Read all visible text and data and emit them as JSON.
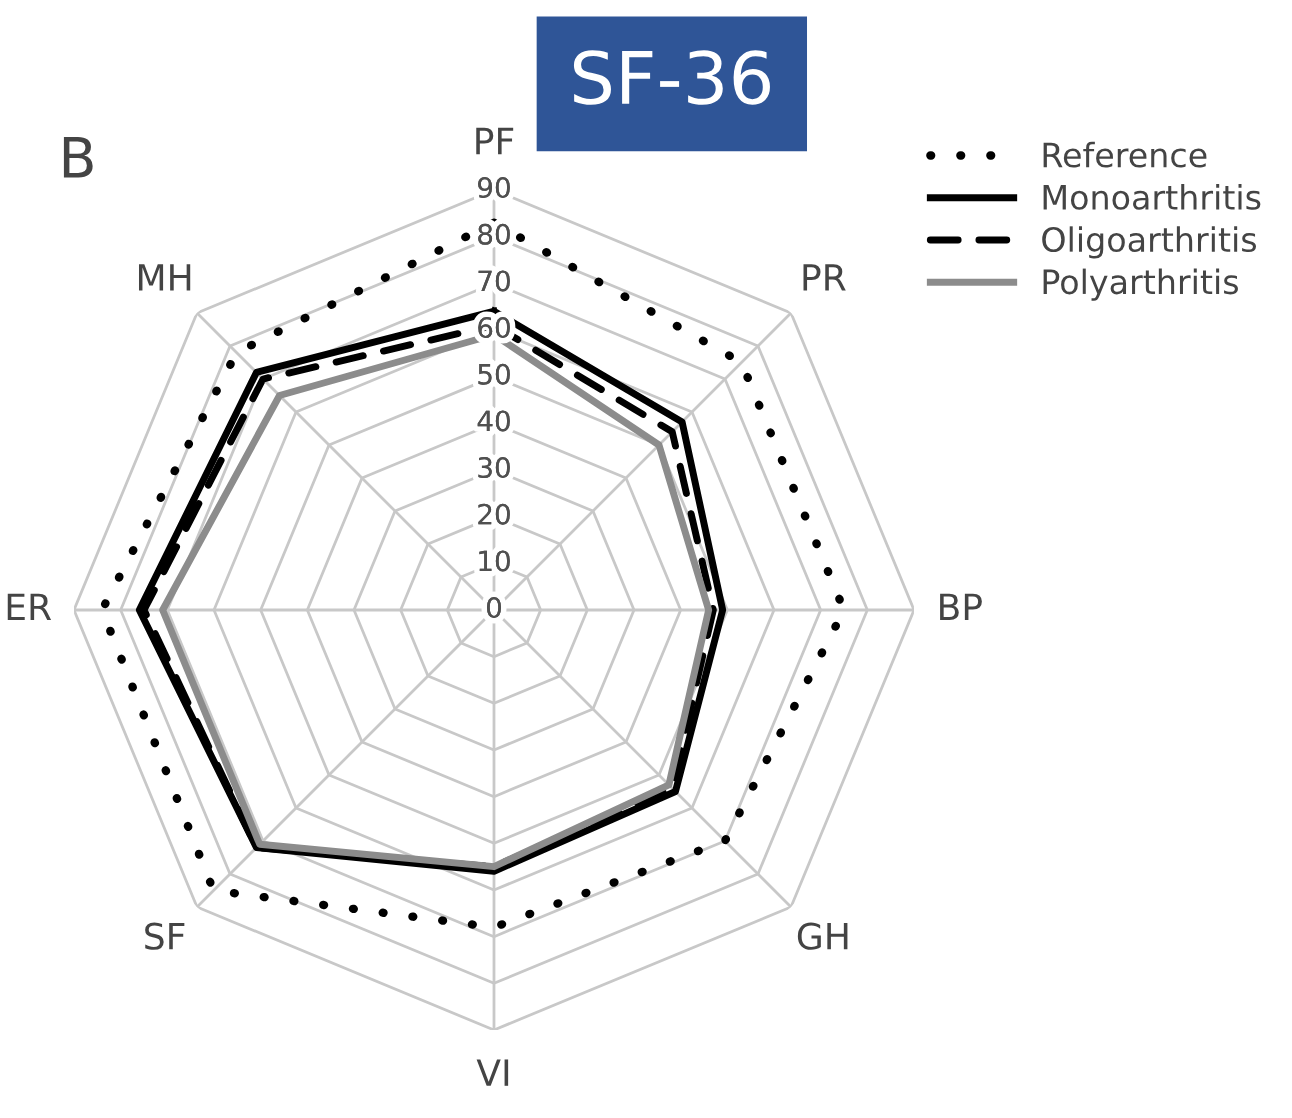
{
  "chart_data": {
    "type": "radar",
    "title": "SF-36",
    "annotations": [
      "B"
    ],
    "categories": [
      "PF",
      "PR",
      "BP",
      "GH",
      "VI",
      "SF",
      "ER",
      "MH"
    ],
    "ylim": [
      0,
      90
    ],
    "yticks": [
      0,
      10,
      20,
      30,
      40,
      50,
      60,
      70,
      80,
      90
    ],
    "grid": true,
    "legend": "top right",
    "marker": "none",
    "series": [
      {
        "name": "Reference",
        "color": "#000000",
        "line_style": "dotted",
        "values": [
          83,
          75,
          75,
          70,
          68,
          85,
          84,
          78
        ]
      },
      {
        "name": "Monoarthritis",
        "color": "#000000",
        "line_style": "solid",
        "values": [
          64,
          57,
          49,
          55,
          56,
          72,
          76,
          72
        ]
      },
      {
        "name": "Oligoarthritis",
        "color": "#000000",
        "line_style": "dashed",
        "values": [
          61,
          54,
          47,
          54,
          55,
          72,
          75,
          70
        ]
      },
      {
        "name": "Polyarthritis",
        "color": "#8c8c8c",
        "line_style": "solid",
        "values": [
          59,
          50,
          46,
          53,
          55,
          71,
          71,
          65
        ]
      }
    ]
  }
}
